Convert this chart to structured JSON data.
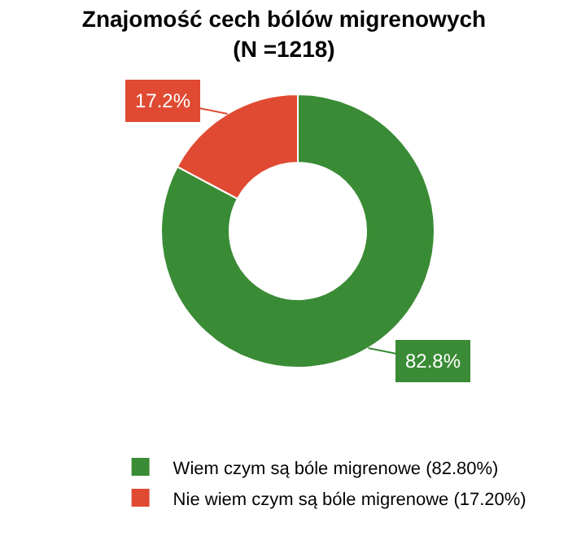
{
  "chart_data": {
    "type": "donut",
    "title": "Znajomość cech bólów migrenowych\n(N =1218)",
    "categories": [
      "Wiem czym są bóle migrenowe (82.80%)",
      "Nie wiem czym są bóle migrenowe (17.20%)"
    ],
    "values": [
      82.8,
      17.2
    ],
    "colors": [
      "#3a8b35",
      "#e04a32"
    ],
    "value_labels": [
      "82.8%",
      "17.2%"
    ],
    "legend": "bottom"
  }
}
